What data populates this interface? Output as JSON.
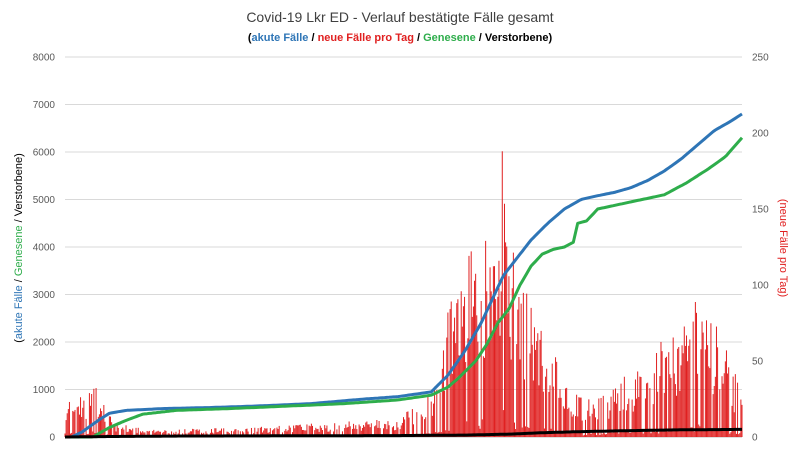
{
  "chart_data": {
    "type": "line",
    "title": "Covid-19 Lkr ED - Verlauf bestätigte Fälle gesamt",
    "subtitle": {
      "open": "(",
      "parts": [
        {
          "text": "akute Fälle",
          "color": "#2E75B6"
        },
        {
          "text": " / ",
          "color": "#000000"
        },
        {
          "text": "neue Fälle pro Tag",
          "color": "#E02020"
        },
        {
          "text": " / ",
          "color": "#000000"
        },
        {
          "text": "Genesene",
          "color": "#2EAD4B"
        },
        {
          "text": " / ",
          "color": "#000000"
        },
        {
          "text": "Verstorbene",
          "color": "#000000"
        }
      ],
      "close": ")"
    },
    "ylabel_left": {
      "open": "(",
      "parts": [
        {
          "text": "akute Fälle",
          "color": "#2E75B6"
        },
        {
          "text": " / ",
          "color": "#000000"
        },
        {
          "text": "Genesene",
          "color": "#2EAD4B"
        },
        {
          "text": " / ",
          "color": "#000000"
        },
        {
          "text": "Verstorbene",
          "color": "#000000"
        }
      ],
      "close": ")"
    },
    "ylabel_right": {
      "text": "(neue Fälle pro Tag)",
      "color": "#E02020"
    },
    "ylim_left": [
      0,
      8000
    ],
    "ylim_right": [
      0,
      250
    ],
    "yticks_left": [
      0,
      1000,
      2000,
      3000,
      4000,
      5000,
      6000,
      7000,
      8000
    ],
    "yticks_right": [
      0,
      50,
      100,
      150,
      200,
      250
    ],
    "grid": true,
    "days": 448,
    "series": [
      {
        "name": "akute Fälle",
        "axis": "left",
        "color": "#2E75B6",
        "keypoints": [
          [
            0,
            0
          ],
          [
            6,
            0
          ],
          [
            15,
            100
          ],
          [
            30,
            350
          ],
          [
            40,
            500
          ],
          [
            55,
            560
          ],
          [
            90,
            600
          ],
          [
            130,
            620
          ],
          [
            170,
            650
          ],
          [
            220,
            700
          ],
          [
            270,
            800
          ],
          [
            300,
            850
          ],
          [
            330,
            950
          ],
          [
            345,
            1300
          ],
          [
            360,
            1800
          ],
          [
            375,
            2400
          ],
          [
            385,
            2900
          ],
          [
            395,
            3400
          ],
          [
            405,
            3700
          ],
          [
            420,
            4150
          ],
          [
            435,
            4500
          ],
          [
            450,
            4800
          ],
          [
            465,
            5000
          ],
          [
            480,
            5080
          ],
          [
            495,
            5150
          ],
          [
            510,
            5250
          ],
          [
            525,
            5400
          ],
          [
            540,
            5600
          ],
          [
            555,
            5850
          ],
          [
            570,
            6150
          ],
          [
            585,
            6450
          ],
          [
            600,
            6650
          ],
          [
            610,
            6800
          ]
        ]
      },
      {
        "name": "Genesene",
        "axis": "left",
        "color": "#2EAD4B",
        "keypoints": [
          [
            0,
            0
          ],
          [
            25,
            0
          ],
          [
            40,
            200
          ],
          [
            55,
            350
          ],
          [
            70,
            480
          ],
          [
            100,
            560
          ],
          [
            150,
            600
          ],
          [
            200,
            650
          ],
          [
            250,
            700
          ],
          [
            300,
            780
          ],
          [
            330,
            880
          ],
          [
            345,
            1050
          ],
          [
            355,
            1250
          ],
          [
            370,
            1600
          ],
          [
            380,
            1950
          ],
          [
            390,
            2400
          ],
          [
            400,
            2700
          ],
          [
            410,
            3200
          ],
          [
            420,
            3600
          ],
          [
            430,
            3850
          ],
          [
            440,
            3950
          ],
          [
            450,
            4000
          ],
          [
            458,
            4100
          ],
          [
            462,
            4500
          ],
          [
            470,
            4550
          ],
          [
            480,
            4800
          ],
          [
            500,
            4900
          ],
          [
            520,
            5000
          ],
          [
            540,
            5100
          ],
          [
            560,
            5350
          ],
          [
            580,
            5650
          ],
          [
            595,
            5900
          ],
          [
            610,
            6300
          ]
        ]
      },
      {
        "name": "Verstorbene",
        "axis": "left",
        "color": "#000000",
        "keypoints": [
          [
            0,
            0
          ],
          [
            40,
            10
          ],
          [
            100,
            20
          ],
          [
            200,
            25
          ],
          [
            300,
            30
          ],
          [
            360,
            40
          ],
          [
            400,
            60
          ],
          [
            430,
            90
          ],
          [
            460,
            110
          ],
          [
            500,
            130
          ],
          [
            550,
            150
          ],
          [
            610,
            160
          ]
        ]
      },
      {
        "name": "neue Fälle pro Tag",
        "axis": "right",
        "type": "bar",
        "color": "#E02020",
        "peaks": [
          [
            25,
            42
          ],
          [
            30,
            30
          ],
          [
            45,
            10
          ],
          [
            75,
            5
          ],
          [
            150,
            6
          ],
          [
            200,
            8
          ],
          [
            250,
            10
          ],
          [
            300,
            12
          ],
          [
            320,
            25
          ],
          [
            330,
            30
          ],
          [
            340,
            60
          ],
          [
            345,
            95
          ],
          [
            352,
            110
          ],
          [
            360,
            120
          ],
          [
            365,
            125
          ],
          [
            372,
            115
          ],
          [
            378,
            140
          ],
          [
            385,
            135
          ],
          [
            390,
            115
          ],
          [
            395,
            213
          ],
          [
            400,
            140
          ],
          [
            410,
            110
          ],
          [
            420,
            90
          ],
          [
            430,
            70
          ],
          [
            440,
            60
          ],
          [
            450,
            40
          ],
          [
            460,
            30
          ],
          [
            480,
            25
          ],
          [
            500,
            40
          ],
          [
            520,
            50
          ],
          [
            540,
            65
          ],
          [
            560,
            75
          ],
          [
            572,
            100
          ],
          [
            580,
            80
          ],
          [
            590,
            70
          ],
          [
            600,
            50
          ],
          [
            610,
            30
          ]
        ]
      }
    ]
  }
}
